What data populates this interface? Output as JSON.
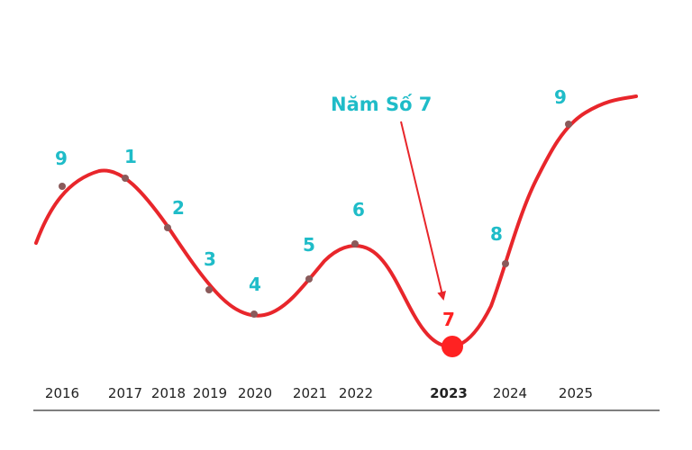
{
  "chart_data": {
    "type": "line",
    "x": [
      "2016",
      "2017",
      "2018",
      "2019",
      "2020",
      "2021",
      "2022",
      "2023",
      "2024",
      "2025"
    ],
    "point_labels": [
      "9",
      "1",
      "2",
      "3",
      "4",
      "5",
      "6",
      "7",
      "8",
      "9"
    ],
    "highlight_index": 7,
    "annotation": "Năm Số 7",
    "colors": {
      "line": "#e8262b",
      "point": "#8a5a5a",
      "label": "#1fbcc8",
      "highlight": "#ff2222",
      "axis": "#555555",
      "year_text": "#222222"
    }
  }
}
